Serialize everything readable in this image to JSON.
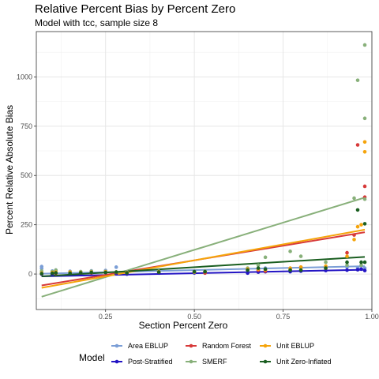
{
  "chart_data": {
    "type": "scatter",
    "title": "Relative Percent Bias by Percent Zero",
    "subtitle": "Model with tcc, sample size 8",
    "xlabel": "Section Percent Zero",
    "ylabel": "Percent Relative Absolute Bias",
    "xlim": [
      0.055,
      1.0
    ],
    "ylim": [
      -180,
      1230
    ],
    "x_ticks": [
      0.25,
      0.5,
      0.75,
      1.0
    ],
    "x_tick_labels": [
      "0.25",
      "0.50",
      "0.75",
      "1.00"
    ],
    "y_ticks": [
      0,
      250,
      500,
      750,
      1000
    ],
    "y_tick_labels": [
      "0",
      "250",
      "500",
      "750",
      "1000"
    ],
    "grid": true,
    "legend_position": "bottom",
    "legend_title": "Model",
    "series": [
      {
        "name": "Area EBLUP",
        "color": "#7b9ed6",
        "points": [
          [
            0.07,
            38
          ],
          [
            0.07,
            28
          ],
          [
            0.1,
            15
          ],
          [
            0.11,
            20
          ],
          [
            0.15,
            14
          ],
          [
            0.18,
            12
          ],
          [
            0.21,
            16
          ],
          [
            0.25,
            18
          ],
          [
            0.28,
            35
          ],
          [
            0.31,
            10
          ],
          [
            0.4,
            14
          ],
          [
            0.5,
            12
          ],
          [
            0.53,
            10
          ],
          [
            0.65,
            12
          ],
          [
            0.68,
            20
          ],
          [
            0.7,
            30
          ],
          [
            0.77,
            20
          ],
          [
            0.8,
            30
          ],
          [
            0.87,
            35
          ],
          [
            0.93,
            35
          ],
          [
            0.96,
            30
          ],
          [
            0.97,
            25
          ],
          [
            0.98,
            30
          ]
        ],
        "fit": [
          [
            0.07,
            2
          ],
          [
            0.98,
            40
          ]
        ]
      },
      {
        "name": "Post-Stratified",
        "color": "#2314c4",
        "points": [
          [
            0.07,
            0
          ],
          [
            0.1,
            -2
          ],
          [
            0.11,
            5
          ],
          [
            0.15,
            5
          ],
          [
            0.18,
            4
          ],
          [
            0.21,
            6
          ],
          [
            0.25,
            8
          ],
          [
            0.28,
            2
          ],
          [
            0.31,
            0
          ],
          [
            0.4,
            5
          ],
          [
            0.5,
            6
          ],
          [
            0.53,
            8
          ],
          [
            0.65,
            5
          ],
          [
            0.68,
            10
          ],
          [
            0.7,
            12
          ],
          [
            0.77,
            12
          ],
          [
            0.8,
            15
          ],
          [
            0.87,
            18
          ],
          [
            0.93,
            20
          ],
          [
            0.96,
            22
          ],
          [
            0.97,
            25
          ],
          [
            0.98,
            18
          ]
        ],
        "fit": [
          [
            0.07,
            -12
          ],
          [
            0.98,
            22
          ]
        ]
      },
      {
        "name": "Random Forest",
        "color": "#d73a3a",
        "points": [
          [
            0.07,
            2
          ],
          [
            0.1,
            6
          ],
          [
            0.11,
            4
          ],
          [
            0.15,
            8
          ],
          [
            0.18,
            6
          ],
          [
            0.21,
            6
          ],
          [
            0.25,
            10
          ],
          [
            0.28,
            8
          ],
          [
            0.31,
            6
          ],
          [
            0.4,
            10
          ],
          [
            0.5,
            12
          ],
          [
            0.53,
            5
          ],
          [
            0.65,
            25
          ],
          [
            0.68,
            20
          ],
          [
            0.7,
            15
          ],
          [
            0.77,
            28
          ],
          [
            0.8,
            35
          ],
          [
            0.87,
            30
          ],
          [
            0.93,
            108
          ],
          [
            0.95,
            198
          ],
          [
            0.96,
            655
          ],
          [
            0.98,
            445
          ],
          [
            0.98,
            390
          ]
        ],
        "fit": [
          [
            0.07,
            -58
          ],
          [
            0.98,
            212
          ]
        ]
      },
      {
        "name": "SMERF",
        "color": "#88b07a",
        "points": [
          [
            0.07,
            15
          ],
          [
            0.1,
            12
          ],
          [
            0.11,
            20
          ],
          [
            0.15,
            10
          ],
          [
            0.18,
            12
          ],
          [
            0.21,
            14
          ],
          [
            0.25,
            12
          ],
          [
            0.28,
            10
          ],
          [
            0.31,
            8
          ],
          [
            0.4,
            14
          ],
          [
            0.5,
            10
          ],
          [
            0.53,
            14
          ],
          [
            0.65,
            30
          ],
          [
            0.68,
            45
          ],
          [
            0.7,
            85
          ],
          [
            0.77,
            115
          ],
          [
            0.8,
            90
          ],
          [
            0.87,
            60
          ],
          [
            0.93,
            45
          ],
          [
            0.95,
            385
          ],
          [
            0.96,
            983
          ],
          [
            0.97,
            45
          ],
          [
            0.98,
            1162
          ],
          [
            0.98,
            790
          ],
          [
            0.98,
            380
          ]
        ],
        "fit": [
          [
            0.07,
            -115
          ],
          [
            0.98,
            388
          ]
        ]
      },
      {
        "name": "Unit EBLUP",
        "color": "#f5a40b",
        "points": [
          [
            0.07,
            5
          ],
          [
            0.1,
            8
          ],
          [
            0.11,
            10
          ],
          [
            0.15,
            10
          ],
          [
            0.18,
            8
          ],
          [
            0.21,
            10
          ],
          [
            0.25,
            12
          ],
          [
            0.28,
            10
          ],
          [
            0.31,
            8
          ],
          [
            0.4,
            12
          ],
          [
            0.5,
            10
          ],
          [
            0.53,
            12
          ],
          [
            0.65,
            25
          ],
          [
            0.68,
            25
          ],
          [
            0.7,
            22
          ],
          [
            0.77,
            30
          ],
          [
            0.8,
            35
          ],
          [
            0.87,
            40
          ],
          [
            0.93,
            90
          ],
          [
            0.95,
            175
          ],
          [
            0.96,
            240
          ],
          [
            0.97,
            250
          ],
          [
            0.98,
            670
          ],
          [
            0.98,
            620
          ]
        ],
        "fit": [
          [
            0.07,
            -70
          ],
          [
            0.98,
            225
          ]
        ]
      },
      {
        "name": "Unit Zero-Inflated",
        "color": "#1a5e20",
        "points": [
          [
            0.07,
            2
          ],
          [
            0.1,
            4
          ],
          [
            0.11,
            6
          ],
          [
            0.15,
            4
          ],
          [
            0.18,
            6
          ],
          [
            0.21,
            8
          ],
          [
            0.25,
            8
          ],
          [
            0.28,
            10
          ],
          [
            0.31,
            6
          ],
          [
            0.4,
            10
          ],
          [
            0.5,
            12
          ],
          [
            0.53,
            12
          ],
          [
            0.65,
            20
          ],
          [
            0.68,
            30
          ],
          [
            0.7,
            25
          ],
          [
            0.77,
            20
          ],
          [
            0.8,
            20
          ],
          [
            0.87,
            30
          ],
          [
            0.93,
            60
          ],
          [
            0.96,
            325
          ],
          [
            0.97,
            60
          ],
          [
            0.98,
            255
          ],
          [
            0.98,
            60
          ]
        ],
        "fit": [
          [
            0.07,
            -12
          ],
          [
            0.98,
            87
          ]
        ]
      }
    ]
  }
}
